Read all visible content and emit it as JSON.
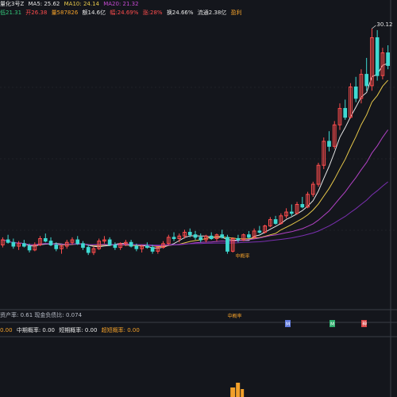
{
  "header": {
    "name": "量化3号Z",
    "ma5": "MA5: 25.62",
    "ma10": "MA10: 24.14",
    "ma20": "MA20: 21.32"
  },
  "info": {
    "low": "低21.31",
    "open": "开26.38",
    "volume": "量587826",
    "amount": "额14.6亿",
    "amplitude": "幅:24.69%",
    "change": "涨:28%",
    "turnover": "换24.66%",
    "float_cap": "流通2.38亿",
    "tag": "盈利"
  },
  "assets": {
    "text": "资产率: 0.61  现金负债比: 0.074"
  },
  "sub_indicator": {
    "a": "0.00",
    "b": "中期概率: 0.00",
    "c": "短期概率: 0.00",
    "d": "超短概率: 0.00"
  },
  "annotations": {
    "price_high": "30.12",
    "label_mid": "中概率",
    "label_left": "中概率",
    "markers": [
      "M",
      "M",
      "神"
    ]
  },
  "colors": {
    "background": "#14161c",
    "up": "#ff4d4d",
    "down": "#3fd9d2",
    "ma5": "#e6e6e6",
    "ma10": "#e7c84a",
    "ma20": "#b142c4",
    "ma60": "#7a2fb0",
    "grid": "#2a2d36",
    "volume": "#f2a02a"
  },
  "chart_data": {
    "type": "candlestick",
    "y_range": [
      8,
      31
    ],
    "candles": [
      [
        13.0,
        13.6,
        12.8,
        13.4
      ],
      [
        13.4,
        13.8,
        13.1,
        13.2
      ],
      [
        13.2,
        13.5,
        12.7,
        12.9
      ],
      [
        12.9,
        13.3,
        12.6,
        13.1
      ],
      [
        13.1,
        13.4,
        12.8,
        12.9
      ],
      [
        12.9,
        13.1,
        12.4,
        12.6
      ],
      [
        12.6,
        13.2,
        12.5,
        13.0
      ],
      [
        13.0,
        13.7,
        12.9,
        13.5
      ],
      [
        13.5,
        13.9,
        13.2,
        13.3
      ],
      [
        13.3,
        13.6,
        12.9,
        13.0
      ],
      [
        13.0,
        13.2,
        12.5,
        12.7
      ],
      [
        12.7,
        13.0,
        12.3,
        12.9
      ],
      [
        12.9,
        13.4,
        12.7,
        13.2
      ],
      [
        13.2,
        13.6,
        13.0,
        13.4
      ],
      [
        13.4,
        13.7,
        13.0,
        13.1
      ],
      [
        13.1,
        13.3,
        12.6,
        12.8
      ],
      [
        12.8,
        13.0,
        12.2,
        12.4
      ],
      [
        12.4,
        12.9,
        12.2,
        12.7
      ],
      [
        12.7,
        13.5,
        12.6,
        13.3
      ],
      [
        13.3,
        13.7,
        13.1,
        13.4
      ],
      [
        13.4,
        13.6,
        12.9,
        13.0
      ],
      [
        13.0,
        13.2,
        12.6,
        12.8
      ],
      [
        12.8,
        13.2,
        12.6,
        13.1
      ],
      [
        13.1,
        13.4,
        12.9,
        13.2
      ],
      [
        13.2,
        13.4,
        12.8,
        12.9
      ],
      [
        12.9,
        13.1,
        12.5,
        12.7
      ],
      [
        12.7,
        13.0,
        12.4,
        12.9
      ],
      [
        12.9,
        13.2,
        12.7,
        12.8
      ],
      [
        12.8,
        13.0,
        12.3,
        12.5
      ],
      [
        12.5,
        12.9,
        12.3,
        12.8
      ],
      [
        12.8,
        13.3,
        12.7,
        13.1
      ],
      [
        13.1,
        13.8,
        13.0,
        13.6
      ],
      [
        13.6,
        14.0,
        13.3,
        13.5
      ],
      [
        13.5,
        13.9,
        13.2,
        13.7
      ],
      [
        13.7,
        14.2,
        13.5,
        14.0
      ],
      [
        14.0,
        14.3,
        13.6,
        13.8
      ],
      [
        13.8,
        14.1,
        13.4,
        13.6
      ],
      [
        13.6,
        13.9,
        13.2,
        13.4
      ],
      [
        13.4,
        13.8,
        13.2,
        13.7
      ],
      [
        13.7,
        14.0,
        13.4,
        13.5
      ],
      [
        13.5,
        13.9,
        13.3,
        13.8
      ],
      [
        13.8,
        14.2,
        13.5,
        13.6
      ],
      [
        13.6,
        13.8,
        12.3,
        12.5
      ],
      [
        12.5,
        13.6,
        12.4,
        13.5
      ],
      [
        13.5,
        13.8,
        13.2,
        13.4
      ],
      [
        13.4,
        13.9,
        13.3,
        13.8
      ],
      [
        13.8,
        14.1,
        13.5,
        13.6
      ],
      [
        13.6,
        14.3,
        13.5,
        14.1
      ],
      [
        14.1,
        14.5,
        13.9,
        14.0
      ],
      [
        14.0,
        14.6,
        13.9,
        14.5
      ],
      [
        14.5,
        15.2,
        14.4,
        15.0
      ],
      [
        15.0,
        15.3,
        14.6,
        14.7
      ],
      [
        14.7,
        15.5,
        14.6,
        15.3
      ],
      [
        15.3,
        15.9,
        15.1,
        15.6
      ],
      [
        15.6,
        16.2,
        15.3,
        15.5
      ],
      [
        15.5,
        16.4,
        15.4,
        16.2
      ],
      [
        16.2,
        16.8,
        15.9,
        16.0
      ],
      [
        16.0,
        17.2,
        15.9,
        17.0
      ],
      [
        17.0,
        18.0,
        16.8,
        17.8
      ],
      [
        17.8,
        19.5,
        17.6,
        19.3
      ],
      [
        19.3,
        21.5,
        19.0,
        21.2
      ],
      [
        21.2,
        22.0,
        20.4,
        20.8
      ],
      [
        20.8,
        22.8,
        20.6,
        22.5
      ],
      [
        22.5,
        24.2,
        22.1,
        23.8
      ],
      [
        23.8,
        24.5,
        22.9,
        23.1
      ],
      [
        23.1,
        25.8,
        23.0,
        25.5
      ],
      [
        25.5,
        26.3,
        24.3,
        24.6
      ],
      [
        24.6,
        26.9,
        24.2,
        26.5
      ],
      [
        26.5,
        27.8,
        25.2,
        25.6
      ],
      [
        25.6,
        30.12,
        25.2,
        29.4
      ],
      [
        29.4,
        30.0,
        26.0,
        26.4
      ],
      [
        26.4,
        28.6,
        26.1,
        28.2
      ],
      [
        28.2,
        28.8,
        26.9,
        27.2
      ]
    ],
    "high_label": "30.12"
  }
}
